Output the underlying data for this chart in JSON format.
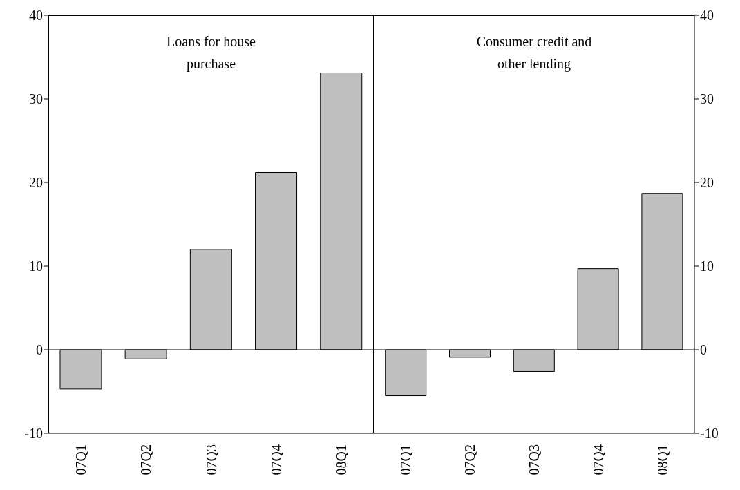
{
  "chart_data": [
    {
      "type": "bar",
      "title": "Loans for house purchase",
      "categories": [
        "07Q1",
        "07Q2",
        "07Q3",
        "07Q4",
        "08Q1"
      ],
      "series": [
        {
          "color": "#c0c0c0",
          "values": [
            -4.7,
            -1.1,
            12.0,
            21.2,
            33.1
          ]
        }
      ],
      "ylim": [
        -10,
        40
      ],
      "yticks": [
        -10,
        0,
        10,
        20,
        30,
        40
      ],
      "ref_lines": [
        {
          "axis": "y",
          "value": 0,
          "color": "#000000"
        }
      ]
    },
    {
      "type": "bar",
      "title": "Consumer credit and other lending",
      "categories": [
        "07Q1",
        "07Q2",
        "07Q3",
        "07Q4",
        "08Q1"
      ],
      "series": [
        {
          "color": "#c0c0c0",
          "values": [
            -5.5,
            -0.9,
            -2.6,
            9.7,
            18.7
          ],
          "axis": "y2"
        }
      ],
      "y2lim": [
        -10,
        40
      ],
      "y2ticks": [
        -10,
        0,
        10,
        20,
        30,
        40
      ],
      "ref_lines": [
        {
          "axis": "y2",
          "value": 0,
          "color": "#000000"
        }
      ]
    }
  ]
}
